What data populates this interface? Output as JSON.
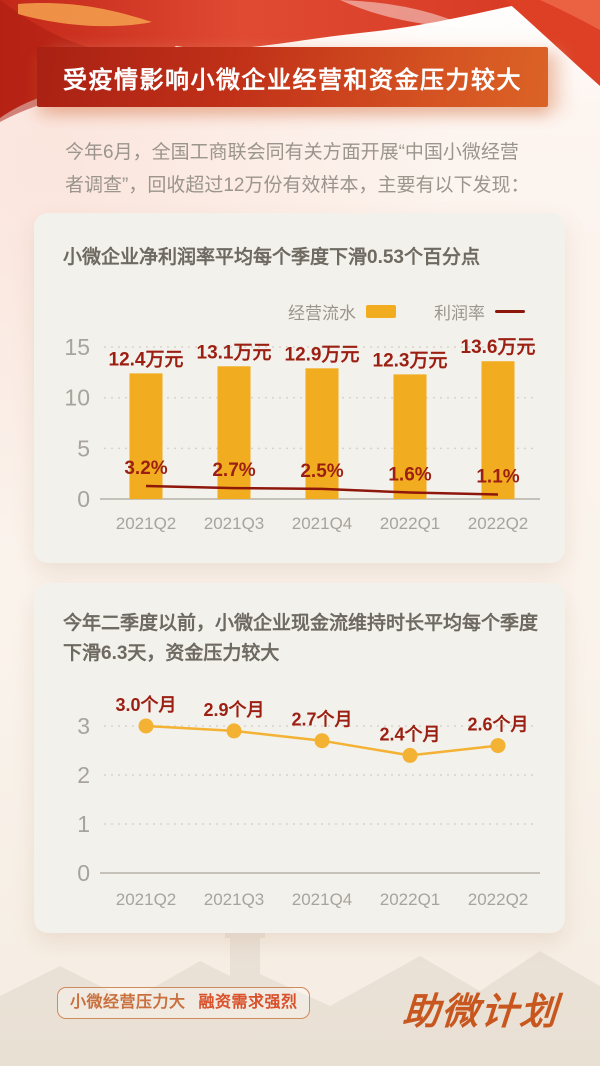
{
  "banner": {
    "title": "受疫情影响小微企业经营和资金压力较大"
  },
  "intro": {
    "lines": [
      "今年6月，全国工商联会同有关方面开展“中国小微经营",
      "者调查”，回收超过12万份有效样本，主要有以下发现："
    ]
  },
  "cards": [
    {
      "title_lines": [
        "小微企业净利润率平均每个季度下滑0.53个百分点"
      ],
      "legend": {
        "flow_label": "经营流水",
        "profit_label": "利润率"
      }
    },
    {
      "title_lines": [
        "今年二季度以前，小微企业现金流维持时长平均每个季度",
        "下滑6.3天，资金压力较大"
      ]
    }
  ],
  "footer": {
    "slogan_part1": "小微经营压力大",
    "slogan_part2": "融资需求强烈",
    "brand": "助微计划"
  },
  "colors": {
    "banner_gradient_start": "#a92114",
    "banner_gradient_end": "#db6326",
    "bar_yellow": "#f2ac1f",
    "cashflow_line_yellow": "#f3b233",
    "profit_line_red": "#8e170c",
    "data_label_red": "#9b1f12",
    "axis_gray": "#a8a49d",
    "card_bg": "#f3f1eb",
    "slogan_orange": "#d9502a"
  },
  "chart_data": [
    {
      "type": "bar",
      "title": "小微企业净利润率平均每个季度下滑0.53个百分点",
      "categories": [
        "2021Q2",
        "2021Q3",
        "2021Q4",
        "2022Q1",
        "2022Q2"
      ],
      "series": [
        {
          "name": "经营流水",
          "type": "bar",
          "unit": "万元",
          "values": [
            12.4,
            13.1,
            12.9,
            12.3,
            13.6
          ],
          "labels": [
            "12.4万元",
            "13.1万元",
            "12.9万元",
            "12.3万元",
            "13.6万元"
          ],
          "color": "#f2ac1f",
          "axis": "primary"
        },
        {
          "name": "利润率",
          "type": "line",
          "unit": "%",
          "values": [
            3.2,
            2.7,
            2.5,
            1.6,
            1.1
          ],
          "labels": [
            "3.2%",
            "2.7%",
            "2.5%",
            "1.6%",
            "1.1%"
          ],
          "color": "#8e170c",
          "axis": "secondary"
        }
      ],
      "ylim": [
        0,
        15
      ],
      "yticks": [
        0,
        5,
        10,
        15
      ],
      "grid": "dotted horizontal",
      "legend_position": "top-right"
    },
    {
      "type": "line",
      "title": "今年二季度以前，小微企业现金流维持时长平均每个季度下滑6.3天，资金压力较大",
      "categories": [
        "2021Q2",
        "2021Q3",
        "2021Q4",
        "2022Q1",
        "2022Q2"
      ],
      "series": [
        {
          "name": "现金流维持时长",
          "type": "line",
          "unit": "个月",
          "values": [
            3.0,
            2.9,
            2.7,
            2.4,
            2.6
          ],
          "labels": [
            "3.0个月",
            "2.9个月",
            "2.7个月",
            "2.4个月",
            "2.6个月"
          ],
          "color": "#f3b233"
        }
      ],
      "ylim": [
        0,
        3
      ],
      "yticks": [
        0,
        1,
        2,
        3
      ],
      "grid": "dotted horizontal",
      "legend_position": "none"
    }
  ]
}
